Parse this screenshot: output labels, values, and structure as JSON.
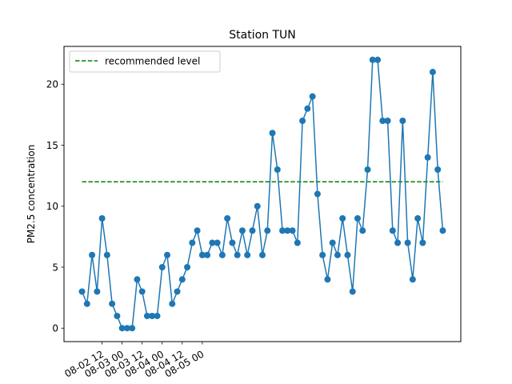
{
  "chart_data": {
    "type": "line",
    "title": "Station TUN",
    "xlabel": "",
    "ylabel": "PM2.5 concentration",
    "x_start": "2018-08-02 00:00",
    "x_step_hours": 3,
    "x_ticks": [
      "08-02 12",
      "08-03 00",
      "08-03 12",
      "08-04 00",
      "08-04 12",
      "08-05 00"
    ],
    "y_ticks": [
      0,
      5,
      10,
      15,
      20
    ],
    "ylim": [
      -1.1,
      23.1
    ],
    "grid": false,
    "legend_position": "top-left",
    "series": [
      {
        "values": [
          3,
          2,
          6,
          3,
          9,
          6,
          2,
          1,
          0,
          0,
          0,
          4,
          3,
          1,
          1,
          1,
          5,
          6,
          2,
          3,
          4,
          5,
          7,
          8,
          6,
          6,
          7,
          7,
          6,
          9,
          7,
          6,
          8,
          6,
          8,
          10,
          6,
          8,
          16,
          13,
          8,
          8,
          8,
          7,
          17,
          18,
          19,
          11,
          6,
          4,
          7,
          6,
          9,
          6,
          3,
          9,
          8,
          13,
          22,
          22,
          17,
          17,
          8,
          7,
          17,
          7,
          4,
          9,
          7,
          14,
          21,
          13,
          8
        ],
        "color": "#1f77b4",
        "marker": "circle"
      },
      {
        "name": "recommended level",
        "values": [
          12,
          12
        ],
        "style": "dashed",
        "color": "#008000"
      }
    ]
  }
}
